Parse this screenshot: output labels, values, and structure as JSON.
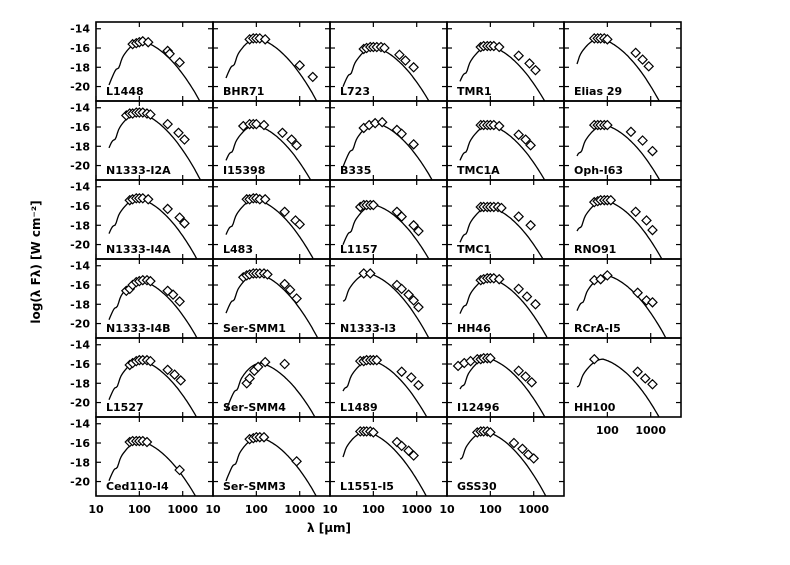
{
  "chart_data": {
    "type": "scatter",
    "layout": {
      "rows": 6,
      "cols": 5
    },
    "xscale": "log",
    "xlim": [
      10,
      5000
    ],
    "ylim": [
      -21.5,
      -13.3
    ],
    "xticks": [
      10,
      100,
      1000
    ],
    "xtick_labels": [
      "10",
      "100",
      "1000"
    ],
    "yticks": [
      -14,
      -16,
      -18,
      -20
    ],
    "ytick_labels": [
      "-14",
      "-16",
      "-18",
      "-20"
    ],
    "xlabel": "λ [μm]",
    "ylabel": "log(λ Fλ) [W cm⁻²]",
    "panels": [
      {
        "label": "L1448",
        "peak": {
          "x": 120,
          "y": -15.3
        },
        "points": [
          [
            70,
            -15.6
          ],
          [
            85,
            -15.5
          ],
          [
            100,
            -15.4
          ],
          [
            120,
            -15.3
          ],
          [
            160,
            -15.4
          ],
          [
            450,
            -16.3
          ],
          [
            500,
            -16.6
          ],
          [
            850,
            -17.5
          ]
        ]
      },
      {
        "label": "BHR71",
        "peak": {
          "x": 110,
          "y": -15.0
        },
        "points": [
          [
            70,
            -15.1
          ],
          [
            85,
            -15.0
          ],
          [
            100,
            -15.0
          ],
          [
            120,
            -15.0
          ],
          [
            160,
            -15.1
          ],
          [
            1000,
            -17.8
          ],
          [
            2000,
            -19.0
          ]
        ]
      },
      {
        "label": "L723",
        "peak": {
          "x": 110,
          "y": -15.9
        },
        "points": [
          [
            60,
            -16.1
          ],
          [
            70,
            -16.0
          ],
          [
            85,
            -15.9
          ],
          [
            100,
            -15.9
          ],
          [
            120,
            -15.9
          ],
          [
            150,
            -15.9
          ],
          [
            180,
            -16.0
          ],
          [
            400,
            -16.7
          ],
          [
            550,
            -17.3
          ],
          [
            850,
            -18.0
          ]
        ]
      },
      {
        "label": "TMR1",
        "peak": {
          "x": 100,
          "y": -15.8
        },
        "points": [
          [
            60,
            -15.9
          ],
          [
            70,
            -15.8
          ],
          [
            85,
            -15.8
          ],
          [
            100,
            -15.8
          ],
          [
            120,
            -15.8
          ],
          [
            160,
            -15.9
          ],
          [
            450,
            -16.8
          ],
          [
            800,
            -17.6
          ],
          [
            1100,
            -18.3
          ]
        ]
      },
      {
        "label": "Elias 29",
        "peak": {
          "x": 70,
          "y": -15.0
        },
        "points": [
          [
            50,
            -15.0
          ],
          [
            60,
            -15.0
          ],
          [
            70,
            -15.0
          ],
          [
            85,
            -15.0
          ],
          [
            100,
            -15.1
          ],
          [
            450,
            -16.5
          ],
          [
            650,
            -17.2
          ],
          [
            900,
            -17.9
          ]
        ]
      },
      {
        "label": "N1333-I2A",
        "peak": {
          "x": 100,
          "y": -14.5
        },
        "points": [
          [
            50,
            -14.8
          ],
          [
            60,
            -14.6
          ],
          [
            70,
            -14.6
          ],
          [
            85,
            -14.5
          ],
          [
            100,
            -14.5
          ],
          [
            120,
            -14.5
          ],
          [
            150,
            -14.6
          ],
          [
            180,
            -14.7
          ],
          [
            450,
            -15.7
          ],
          [
            800,
            -16.6
          ],
          [
            1100,
            -17.3
          ]
        ]
      },
      {
        "label": "I15398",
        "peak": {
          "x": 100,
          "y": -15.8
        },
        "points": [
          [
            50,
            -15.9
          ],
          [
            70,
            -15.7
          ],
          [
            85,
            -15.7
          ],
          [
            100,
            -15.7
          ],
          [
            150,
            -15.8
          ],
          [
            400,
            -16.6
          ],
          [
            650,
            -17.3
          ],
          [
            850,
            -17.9
          ]
        ]
      },
      {
        "label": "B335",
        "peak": {
          "x": 120,
          "y": -15.6
        },
        "points": [
          [
            60,
            -16.1
          ],
          [
            80,
            -15.8
          ],
          [
            110,
            -15.6
          ],
          [
            160,
            -15.5
          ],
          [
            350,
            -16.3
          ],
          [
            450,
            -16.7
          ],
          [
            850,
            -17.8
          ]
        ]
      },
      {
        "label": "TMC1A",
        "peak": {
          "x": 100,
          "y": -15.8
        },
        "points": [
          [
            60,
            -15.8
          ],
          [
            70,
            -15.8
          ],
          [
            85,
            -15.8
          ],
          [
            100,
            -15.8
          ],
          [
            120,
            -15.8
          ],
          [
            160,
            -15.9
          ],
          [
            450,
            -16.8
          ],
          [
            650,
            -17.3
          ],
          [
            850,
            -17.9
          ]
        ]
      },
      {
        "label": "Oph-I63",
        "peak": {
          "x": 90,
          "y": -15.8
        },
        "points": [
          [
            50,
            -15.8
          ],
          [
            60,
            -15.8
          ],
          [
            70,
            -15.8
          ],
          [
            85,
            -15.8
          ],
          [
            100,
            -15.8
          ],
          [
            350,
            -16.5
          ],
          [
            650,
            -17.4
          ],
          [
            1100,
            -18.5
          ]
        ]
      },
      {
        "label": "N1333-I4A",
        "peak": {
          "x": 100,
          "y": -15.2
        },
        "points": [
          [
            60,
            -15.4
          ],
          [
            70,
            -15.3
          ],
          [
            85,
            -15.2
          ],
          [
            100,
            -15.2
          ],
          [
            120,
            -15.2
          ],
          [
            160,
            -15.3
          ],
          [
            450,
            -16.3
          ],
          [
            850,
            -17.2
          ],
          [
            1100,
            -17.8
          ]
        ]
      },
      {
        "label": "L483",
        "peak": {
          "x": 100,
          "y": -15.3
        },
        "points": [
          [
            60,
            -15.3
          ],
          [
            70,
            -15.3
          ],
          [
            85,
            -15.2
          ],
          [
            100,
            -15.2
          ],
          [
            120,
            -15.3
          ],
          [
            160,
            -15.3
          ],
          [
            450,
            -16.6
          ],
          [
            800,
            -17.5
          ],
          [
            1000,
            -17.9
          ]
        ]
      },
      {
        "label": "L1157",
        "peak": {
          "x": 110,
          "y": -15.9
        },
        "points": [
          [
            50,
            -16.1
          ],
          [
            60,
            -15.9
          ],
          [
            70,
            -15.9
          ],
          [
            85,
            -15.9
          ],
          [
            100,
            -15.9
          ],
          [
            350,
            -16.6
          ],
          [
            450,
            -17.1
          ],
          [
            850,
            -18.0
          ],
          [
            1100,
            -18.6
          ]
        ]
      },
      {
        "label": "TMC1",
        "peak": {
          "x": 100,
          "y": -16.1
        },
        "points": [
          [
            60,
            -16.1
          ],
          [
            70,
            -16.1
          ],
          [
            85,
            -16.1
          ],
          [
            100,
            -16.1
          ],
          [
            120,
            -16.1
          ],
          [
            150,
            -16.1
          ],
          [
            180,
            -16.2
          ],
          [
            450,
            -17.1
          ],
          [
            850,
            -18.0
          ]
        ]
      },
      {
        "label": "RNO91",
        "peak": {
          "x": 90,
          "y": -15.4
        },
        "points": [
          [
            50,
            -15.6
          ],
          [
            60,
            -15.5
          ],
          [
            70,
            -15.4
          ],
          [
            85,
            -15.4
          ],
          [
            100,
            -15.4
          ],
          [
            120,
            -15.4
          ],
          [
            450,
            -16.6
          ],
          [
            800,
            -17.5
          ],
          [
            1100,
            -18.5
          ]
        ]
      },
      {
        "label": "N1333-I4B",
        "peak": {
          "x": 110,
          "y": -15.5
        },
        "points": [
          [
            50,
            -16.6
          ],
          [
            60,
            -16.4
          ],
          [
            70,
            -16.0
          ],
          [
            85,
            -15.7
          ],
          [
            100,
            -15.6
          ],
          [
            120,
            -15.5
          ],
          [
            150,
            -15.5
          ],
          [
            180,
            -15.6
          ],
          [
            450,
            -16.6
          ],
          [
            600,
            -17.0
          ],
          [
            850,
            -17.7
          ]
        ]
      },
      {
        "label": "Ser-SMM1",
        "peak": {
          "x": 110,
          "y": -14.8
        },
        "points": [
          [
            50,
            -15.2
          ],
          [
            60,
            -15.0
          ],
          [
            70,
            -14.9
          ],
          [
            85,
            -14.8
          ],
          [
            100,
            -14.8
          ],
          [
            120,
            -14.8
          ],
          [
            150,
            -14.8
          ],
          [
            180,
            -14.9
          ],
          [
            450,
            -15.9
          ],
          [
            600,
            -16.5
          ],
          [
            850,
            -17.4
          ]
        ]
      },
      {
        "label": "N1333-I3",
        "peak": {
          "x": 80,
          "y": -14.8
        },
        "points": [
          [
            60,
            -14.8
          ],
          [
            85,
            -14.8
          ],
          [
            350,
            -16.0
          ],
          [
            450,
            -16.4
          ],
          [
            650,
            -17.0
          ],
          [
            850,
            -17.6
          ],
          [
            1100,
            -18.3
          ]
        ]
      },
      {
        "label": "HH46",
        "peak": {
          "x": 100,
          "y": -15.3
        },
        "points": [
          [
            60,
            -15.5
          ],
          [
            70,
            -15.4
          ],
          [
            85,
            -15.3
          ],
          [
            100,
            -15.3
          ],
          [
            120,
            -15.3
          ],
          [
            160,
            -15.4
          ],
          [
            450,
            -16.4
          ],
          [
            700,
            -17.2
          ],
          [
            1100,
            -18.0
          ]
        ]
      },
      {
        "label": "RCrA-I5",
        "peak": {
          "x": 100,
          "y": -15.0
        },
        "points": [
          [
            50,
            -15.5
          ],
          [
            70,
            -15.4
          ],
          [
            100,
            -15.0
          ],
          [
            500,
            -16.8
          ],
          [
            800,
            -17.6
          ],
          [
            1100,
            -17.8
          ]
        ]
      },
      {
        "label": "L1527",
        "peak": {
          "x": 110,
          "y": -15.6
        },
        "points": [
          [
            60,
            -16.1
          ],
          [
            70,
            -15.9
          ],
          [
            85,
            -15.7
          ],
          [
            100,
            -15.6
          ],
          [
            120,
            -15.6
          ],
          [
            150,
            -15.6
          ],
          [
            180,
            -15.7
          ],
          [
            450,
            -16.6
          ],
          [
            650,
            -17.1
          ],
          [
            900,
            -17.7
          ]
        ]
      },
      {
        "label": "Ser-SMM4",
        "peak": {
          "x": 130,
          "y": -15.9
        },
        "points": [
          [
            60,
            -18.0
          ],
          [
            70,
            -17.5
          ],
          [
            90,
            -16.7
          ],
          [
            110,
            -16.3
          ],
          [
            160,
            -15.8
          ],
          [
            450,
            -16.0
          ]
        ]
      },
      {
        "label": "L1489",
        "peak": {
          "x": 90,
          "y": -15.6
        },
        "points": [
          [
            50,
            -15.7
          ],
          [
            60,
            -15.7
          ],
          [
            70,
            -15.6
          ],
          [
            85,
            -15.6
          ],
          [
            100,
            -15.6
          ],
          [
            120,
            -15.6
          ],
          [
            450,
            -16.8
          ],
          [
            750,
            -17.4
          ],
          [
            1100,
            -18.2
          ]
        ]
      },
      {
        "label": "I12496",
        "peak": {
          "x": 90,
          "y": -15.4
        },
        "points": [
          [
            18,
            -16.2
          ],
          [
            25,
            -15.9
          ],
          [
            35,
            -15.7
          ],
          [
            50,
            -15.5
          ],
          [
            60,
            -15.5
          ],
          [
            70,
            -15.4
          ],
          [
            85,
            -15.4
          ],
          [
            100,
            -15.4
          ],
          [
            450,
            -16.7
          ],
          [
            650,
            -17.3
          ],
          [
            900,
            -17.9
          ]
        ]
      },
      {
        "label": "HH100",
        "peak": {
          "x": 80,
          "y": -15.5
        },
        "points": [
          [
            50,
            -15.5
          ],
          [
            500,
            -16.8
          ],
          [
            750,
            -17.5
          ],
          [
            1100,
            -18.1
          ]
        ]
      },
      {
        "label": "Ced110-I4",
        "peak": {
          "x": 110,
          "y": -15.8
        },
        "points": [
          [
            60,
            -15.9
          ],
          [
            70,
            -15.8
          ],
          [
            85,
            -15.8
          ],
          [
            100,
            -15.8
          ],
          [
            120,
            -15.8
          ],
          [
            150,
            -15.9
          ],
          [
            850,
            -18.8
          ]
        ]
      },
      {
        "label": "Ser-SMM3",
        "peak": {
          "x": 120,
          "y": -15.4
        },
        "points": [
          [
            70,
            -15.6
          ],
          [
            85,
            -15.5
          ],
          [
            100,
            -15.4
          ],
          [
            120,
            -15.4
          ],
          [
            150,
            -15.4
          ],
          [
            850,
            -17.9
          ]
        ]
      },
      {
        "label": "L1551-I5",
        "peak": {
          "x": 70,
          "y": -14.8
        },
        "points": [
          [
            50,
            -14.8
          ],
          [
            60,
            -14.8
          ],
          [
            70,
            -14.8
          ],
          [
            85,
            -14.8
          ],
          [
            100,
            -14.9
          ],
          [
            350,
            -15.9
          ],
          [
            450,
            -16.3
          ],
          [
            650,
            -16.8
          ],
          [
            850,
            -17.3
          ]
        ]
      },
      {
        "label": "GSS30",
        "peak": {
          "x": 80,
          "y": -14.8
        },
        "points": [
          [
            50,
            -14.9
          ],
          [
            60,
            -14.8
          ],
          [
            70,
            -14.8
          ],
          [
            85,
            -14.8
          ],
          [
            100,
            -14.9
          ],
          [
            350,
            -16.0
          ],
          [
            550,
            -16.6
          ],
          [
            750,
            -17.2
          ],
          [
            1000,
            -17.6
          ]
        ]
      }
    ]
  }
}
